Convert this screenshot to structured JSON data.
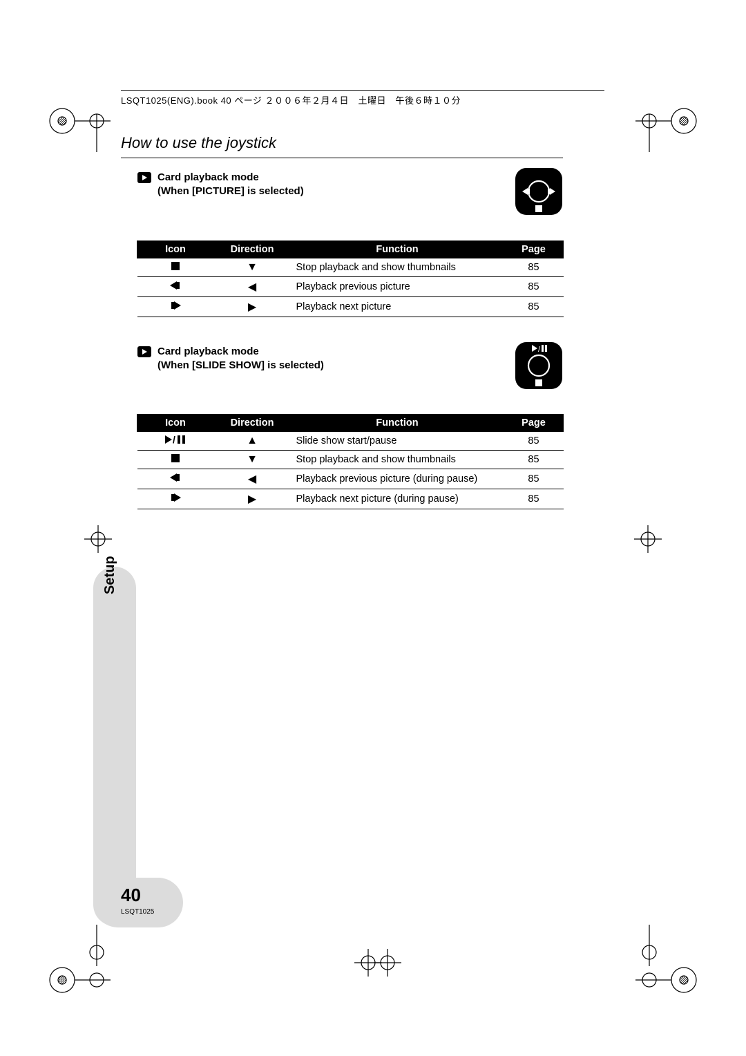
{
  "printHeader": "LSQT1025(ENG).book  40 ページ  ２００６年２月４日　土曜日　午後６時１０分",
  "sectionTitle": "How to use the joystick",
  "sideTab": "Setup",
  "pageNumber": "40",
  "docCode": "LSQT1025",
  "tableHeaders": {
    "icon": "Icon",
    "direction": "Direction",
    "function": "Function",
    "page": "Page"
  },
  "block1": {
    "heading_line1": "Card playback mode",
    "heading_line2": "(When [PICTURE] is selected)",
    "joystick": {
      "top": "",
      "bottom": "■",
      "left": "◂▮",
      "right": "▮▸"
    },
    "rows": [
      {
        "icon": "stop",
        "dir": "▼",
        "fn": "Stop playback and show thumbnails",
        "page": "85"
      },
      {
        "icon": "prev",
        "dir": "◀",
        "fn": "Playback previous picture",
        "page": "85"
      },
      {
        "icon": "next",
        "dir": "▶",
        "fn": "Playback next picture",
        "page": "85"
      }
    ]
  },
  "block2": {
    "heading_line1": "Card playback mode",
    "heading_line2": "(When [SLIDE SHOW] is selected)",
    "joystick": {
      "top": "▶/▮▮",
      "bottom": "■",
      "left": "",
      "right": ""
    },
    "rows": [
      {
        "icon": "playpause",
        "dir": "▲",
        "fn": "Slide show start/pause",
        "page": "85"
      },
      {
        "icon": "stop",
        "dir": "▼",
        "fn": "Stop playback and show thumbnails",
        "page": "85"
      },
      {
        "icon": "prev",
        "dir": "◀",
        "fn": "Playback previous picture (during pause)",
        "page": "85"
      },
      {
        "icon": "next",
        "dir": "▶",
        "fn": "Playback next picture (during pause)",
        "page": "85"
      }
    ]
  },
  "colors": {
    "headerBg": "#000000",
    "headerFg": "#ffffff",
    "tabBg": "#dcdcdc"
  }
}
